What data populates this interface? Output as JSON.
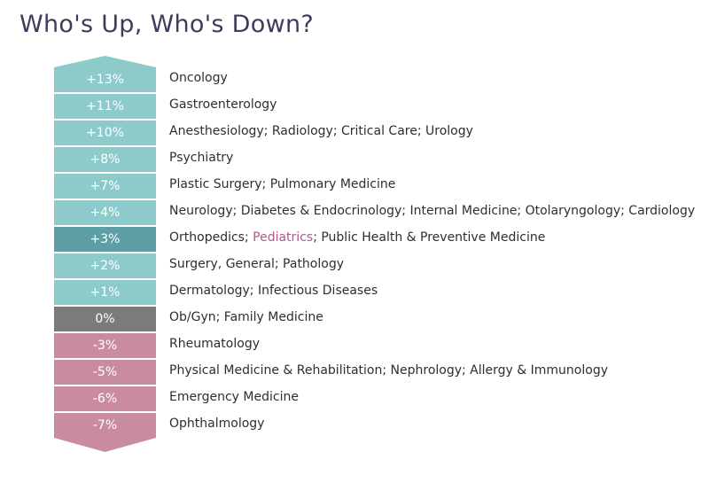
{
  "title": "Who's Up, Who's Down?",
  "colors": {
    "up": "#8dcaca",
    "highlight": "#5c9fa6",
    "zero": "#7b7b7b",
    "down": "#c98ba1",
    "highlight_text": "#b0588a"
  },
  "chart_data": {
    "type": "table",
    "title": "Who's Up, Who's Down?",
    "rows": [
      {
        "value": "+13%",
        "specialties": [
          {
            "text": "Oncology"
          }
        ]
      },
      {
        "value": "+11%",
        "specialties": [
          {
            "text": "Gastroenterology"
          }
        ]
      },
      {
        "value": "+10%",
        "specialties": [
          {
            "text": "Anesthesiology; Radiology; Critical Care; Urology"
          }
        ]
      },
      {
        "value": "+8%",
        "specialties": [
          {
            "text": "Psychiatry"
          }
        ]
      },
      {
        "value": "+7%",
        "specialties": [
          {
            "text": "Plastic Surgery; Pulmonary Medicine"
          }
        ]
      },
      {
        "value": "+4%",
        "specialties": [
          {
            "text": "Neurology; Diabetes & Endocrinology; Internal Medicine; Otolaryngology; Cardiology"
          }
        ]
      },
      {
        "value": "+3%",
        "highlight": true,
        "specialties": [
          {
            "text": "Orthopedics; "
          },
          {
            "text": "Pediatrics",
            "highlight": true
          },
          {
            "text": "; Public Health & Preventive Medicine"
          }
        ]
      },
      {
        "value": "+2%",
        "specialties": [
          {
            "text": "Surgery, General; Pathology"
          }
        ]
      },
      {
        "value": "+1%",
        "specialties": [
          {
            "text": "Dermatology; Infectious Diseases"
          }
        ]
      },
      {
        "value": "0%",
        "specialties": [
          {
            "text": "Ob/Gyn; Family Medicine"
          }
        ]
      },
      {
        "value": "-3%",
        "specialties": [
          {
            "text": "Rheumatology"
          }
        ]
      },
      {
        "value": "-5%",
        "specialties": [
          {
            "text": "Physical Medicine & Rehabilitation; Nephrology; Allergy & Immunology"
          }
        ]
      },
      {
        "value": "-6%",
        "specialties": [
          {
            "text": "Emergency Medicine"
          }
        ]
      },
      {
        "value": "-7%",
        "specialties": [
          {
            "text": "Ophthalmology"
          }
        ]
      }
    ]
  }
}
